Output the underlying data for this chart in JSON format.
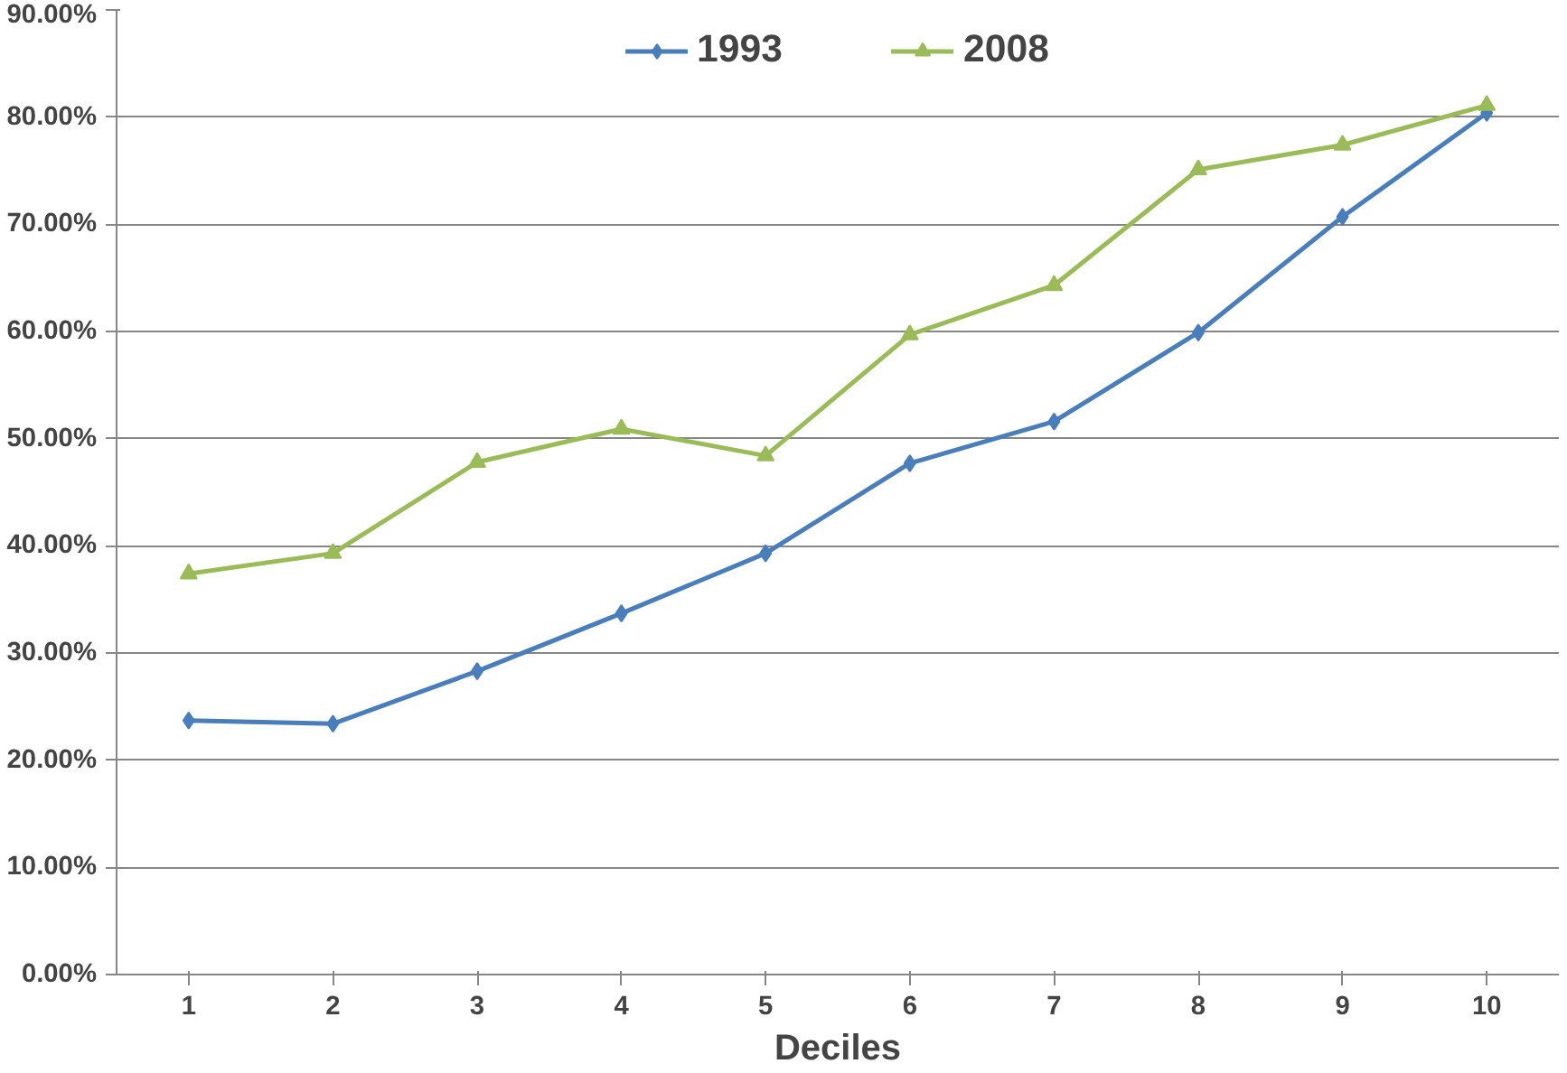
{
  "chart_data": {
    "type": "line",
    "xlabel": "Deciles",
    "categories": [
      "1",
      "2",
      "3",
      "4",
      "5",
      "6",
      "7",
      "8",
      "9",
      "10"
    ],
    "ylim": [
      0,
      90
    ],
    "yticks": [
      {
        "value": 0,
        "label": "0.00%"
      },
      {
        "value": 10,
        "label": "10.00%"
      },
      {
        "value": 20,
        "label": "20.00%"
      },
      {
        "value": 30,
        "label": "30.00%"
      },
      {
        "value": 40,
        "label": "40.00%"
      },
      {
        "value": 50,
        "label": "50.00%"
      },
      {
        "value": 60,
        "label": "60.00%"
      },
      {
        "value": 70,
        "label": "70.00%"
      },
      {
        "value": 80,
        "label": "80.00%"
      },
      {
        "value": 90,
        "label": "90.00%"
      }
    ],
    "grid": "y",
    "legend": "top",
    "line_style": "solid",
    "series": [
      {
        "name": "1993",
        "color": "#4a7ebb",
        "marker": "diamond",
        "values": [
          23.7,
          23.4,
          28.3,
          33.7,
          39.3,
          47.7,
          51.6,
          59.9,
          70.7,
          80.4
        ]
      },
      {
        "name": "2008",
        "color": "#9bbb59",
        "marker": "triangle",
        "values": [
          37.4,
          39.3,
          47.8,
          50.9,
          48.4,
          59.7,
          64.3,
          75.1,
          77.4,
          81.1
        ]
      }
    ]
  }
}
